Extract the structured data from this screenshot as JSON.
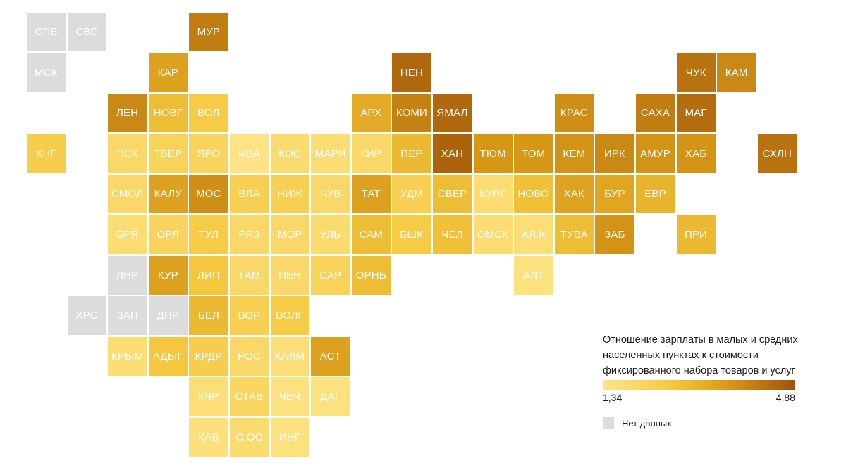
{
  "colors": {
    "no_data": "#dcdcdc",
    "scale": [
      "#fde58a",
      "#f5c940",
      "#d89a18",
      "#9e5208"
    ]
  },
  "legend": {
    "title": "Отношение зарплаты в малых и средних населенных пунктах к стоимости фиксированного набора товаров и услуг",
    "min_label": "1,34",
    "max_label": "4,88",
    "no_data_label": "Нет данных"
  },
  "regions": [
    {
      "label": "СПБ",
      "row": 0,
      "col": 0,
      "level": null
    },
    {
      "label": "СВС",
      "row": 0,
      "col": 1,
      "level": null
    },
    {
      "label": "МУР",
      "row": 0,
      "col": 4,
      "level": 0.8
    },
    {
      "label": "МСК",
      "row": 1,
      "col": 0,
      "level": null
    },
    {
      "label": "КАР",
      "row": 1,
      "col": 3,
      "level": 0.62
    },
    {
      "label": "НЕН",
      "row": 1,
      "col": 9,
      "level": 0.9
    },
    {
      "label": "ЧУК",
      "row": 1,
      "col": 16,
      "level": 0.85
    },
    {
      "label": "КАМ",
      "row": 1,
      "col": 17,
      "level": 0.75
    },
    {
      "label": "ЛЕН",
      "row": 2,
      "col": 2,
      "level": 0.75
    },
    {
      "label": "НОВГ",
      "row": 2,
      "col": 3,
      "level": 0.42
    },
    {
      "label": "ВОЛ",
      "row": 2,
      "col": 4,
      "level": 0.3
    },
    {
      "label": "АРХ",
      "row": 2,
      "col": 8,
      "level": 0.55
    },
    {
      "label": "КОМИ",
      "row": 2,
      "col": 9,
      "level": 0.78
    },
    {
      "label": "ЯМАЛ",
      "row": 2,
      "col": 10,
      "level": 0.9
    },
    {
      "label": "КРАС",
      "row": 2,
      "col": 13,
      "level": 0.72
    },
    {
      "label": "САХА",
      "row": 2,
      "col": 15,
      "level": 0.8
    },
    {
      "label": "МАГ",
      "row": 2,
      "col": 16,
      "level": 0.88
    },
    {
      "label": "КНГ",
      "row": 3,
      "col": 0,
      "level": 0.28
    },
    {
      "label": "ПСК",
      "row": 3,
      "col": 2,
      "level": 0.15
    },
    {
      "label": "ТВЕР",
      "row": 3,
      "col": 3,
      "level": 0.22
    },
    {
      "label": "ЯРО",
      "row": 3,
      "col": 4,
      "level": 0.2
    },
    {
      "label": "ИВА",
      "row": 3,
      "col": 5,
      "level": 0.02
    },
    {
      "label": "КОС",
      "row": 3,
      "col": 6,
      "level": 0.12
    },
    {
      "label": "МАРИ",
      "row": 3,
      "col": 7,
      "level": 0.1
    },
    {
      "label": "КИР",
      "row": 3,
      "col": 8,
      "level": 0.15
    },
    {
      "label": "ПЕР",
      "row": 3,
      "col": 9,
      "level": 0.45
    },
    {
      "label": "ХАН",
      "row": 3,
      "col": 10,
      "level": 0.92
    },
    {
      "label": "ТЮМ",
      "row": 3,
      "col": 11,
      "level": 0.68
    },
    {
      "label": "ТОМ",
      "row": 3,
      "col": 12,
      "level": 0.68
    },
    {
      "label": "КЕМ",
      "row": 3,
      "col": 13,
      "level": 0.7
    },
    {
      "label": "ИРК",
      "row": 3,
      "col": 14,
      "level": 0.75
    },
    {
      "label": "АМУР",
      "row": 3,
      "col": 15,
      "level": 0.7
    },
    {
      "label": "ХАБ",
      "row": 3,
      "col": 16,
      "level": 0.7
    },
    {
      "label": "СХЛН",
      "row": 3,
      "col": 18,
      "level": 0.85
    },
    {
      "label": "СМОЛ",
      "row": 4,
      "col": 2,
      "level": 0.15
    },
    {
      "label": "КАЛУ",
      "row": 4,
      "col": 3,
      "level": 0.62
    },
    {
      "label": "МОС",
      "row": 4,
      "col": 4,
      "level": 0.72
    },
    {
      "label": "ВЛА",
      "row": 4,
      "col": 5,
      "level": 0.25
    },
    {
      "label": "НИЖ",
      "row": 4,
      "col": 6,
      "level": 0.25
    },
    {
      "label": "ЧУВ",
      "row": 4,
      "col": 7,
      "level": 0.15
    },
    {
      "label": "ТАТ",
      "row": 4,
      "col": 8,
      "level": 0.62
    },
    {
      "label": "УДМ",
      "row": 4,
      "col": 9,
      "level": 0.25
    },
    {
      "label": "СВЕР",
      "row": 4,
      "col": 10,
      "level": 0.42
    },
    {
      "label": "КУРГ",
      "row": 4,
      "col": 11,
      "level": 0.1
    },
    {
      "label": "НОВО",
      "row": 4,
      "col": 12,
      "level": 0.4
    },
    {
      "label": "ХАК",
      "row": 4,
      "col": 13,
      "level": 0.6
    },
    {
      "label": "БУР",
      "row": 4,
      "col": 14,
      "level": 0.58
    },
    {
      "label": "ЕВР",
      "row": 4,
      "col": 15,
      "level": 0.48
    },
    {
      "label": "БРЯ",
      "row": 5,
      "col": 2,
      "level": 0.1
    },
    {
      "label": "ОРЛ",
      "row": 5,
      "col": 3,
      "level": 0.2
    },
    {
      "label": "ТУЛ",
      "row": 5,
      "col": 4,
      "level": 0.3
    },
    {
      "label": "РЯЗ",
      "row": 5,
      "col": 5,
      "level": 0.15
    },
    {
      "label": "МОР",
      "row": 5,
      "col": 6,
      "level": 0.15
    },
    {
      "label": "УЛЬ",
      "row": 5,
      "col": 7,
      "level": 0.12
    },
    {
      "label": "САМ",
      "row": 5,
      "col": 8,
      "level": 0.42
    },
    {
      "label": "БШК",
      "row": 5,
      "col": 9,
      "level": 0.3
    },
    {
      "label": "ЧЕЛ",
      "row": 5,
      "col": 10,
      "level": 0.4
    },
    {
      "label": "ОМСК",
      "row": 5,
      "col": 11,
      "level": 0.1
    },
    {
      "label": "АЛ.К",
      "row": 5,
      "col": 12,
      "level": 0.08
    },
    {
      "label": "ТУВА",
      "row": 5,
      "col": 13,
      "level": 0.42
    },
    {
      "label": "ЗАБ",
      "row": 5,
      "col": 14,
      "level": 0.7
    },
    {
      "label": "ПРИ",
      "row": 5,
      "col": 16,
      "level": 0.45
    },
    {
      "label": "ЛНР",
      "row": 6,
      "col": 2,
      "level": null
    },
    {
      "label": "КУР",
      "row": 6,
      "col": 3,
      "level": 0.62
    },
    {
      "label": "ЛИП",
      "row": 6,
      "col": 4,
      "level": 0.35
    },
    {
      "label": "ТАМ",
      "row": 6,
      "col": 5,
      "level": 0.15
    },
    {
      "label": "ПЕН",
      "row": 6,
      "col": 6,
      "level": 0.15
    },
    {
      "label": "САР",
      "row": 6,
      "col": 7,
      "level": 0.22
    },
    {
      "label": "ОРНБ",
      "row": 6,
      "col": 8,
      "level": 0.42
    },
    {
      "label": "АЛТ",
      "row": 6,
      "col": 12,
      "level": 0.05
    },
    {
      "label": "ХРС",
      "row": 7,
      "col": 1,
      "level": null
    },
    {
      "label": "ЗАП",
      "row": 7,
      "col": 2,
      "level": null
    },
    {
      "label": "ДНР",
      "row": 7,
      "col": 3,
      "level": null
    },
    {
      "label": "БЕЛ",
      "row": 7,
      "col": 4,
      "level": 0.45
    },
    {
      "label": "ВОР",
      "row": 7,
      "col": 5,
      "level": 0.25
    },
    {
      "label": "ВОЛГ",
      "row": 7,
      "col": 6,
      "level": 0.3
    },
    {
      "label": "КРЫМ",
      "row": 8,
      "col": 2,
      "level": 0.1
    },
    {
      "label": "АДЫГ",
      "row": 8,
      "col": 3,
      "level": 0.35
    },
    {
      "label": "КРДР",
      "row": 8,
      "col": 4,
      "level": 0.28
    },
    {
      "label": "РОС",
      "row": 8,
      "col": 5,
      "level": 0.15
    },
    {
      "label": "КАЛМ",
      "row": 8,
      "col": 6,
      "level": 0.08
    },
    {
      "label": "АСТ",
      "row": 8,
      "col": 7,
      "level": 0.62
    },
    {
      "label": "КЧР",
      "row": 9,
      "col": 4,
      "level": 0.08
    },
    {
      "label": "СТАВ",
      "row": 9,
      "col": 5,
      "level": 0.18
    },
    {
      "label": "ЧЕЧ",
      "row": 9,
      "col": 6,
      "level": 0.05
    },
    {
      "label": "ДАГ",
      "row": 9,
      "col": 7,
      "level": 0.05
    },
    {
      "label": "КАБ",
      "row": 10,
      "col": 4,
      "level": 0.06
    },
    {
      "label": "С.ОС",
      "row": 10,
      "col": 5,
      "level": 0.12
    },
    {
      "label": "ИНГ",
      "row": 10,
      "col": 6,
      "level": 0.05
    }
  ]
}
